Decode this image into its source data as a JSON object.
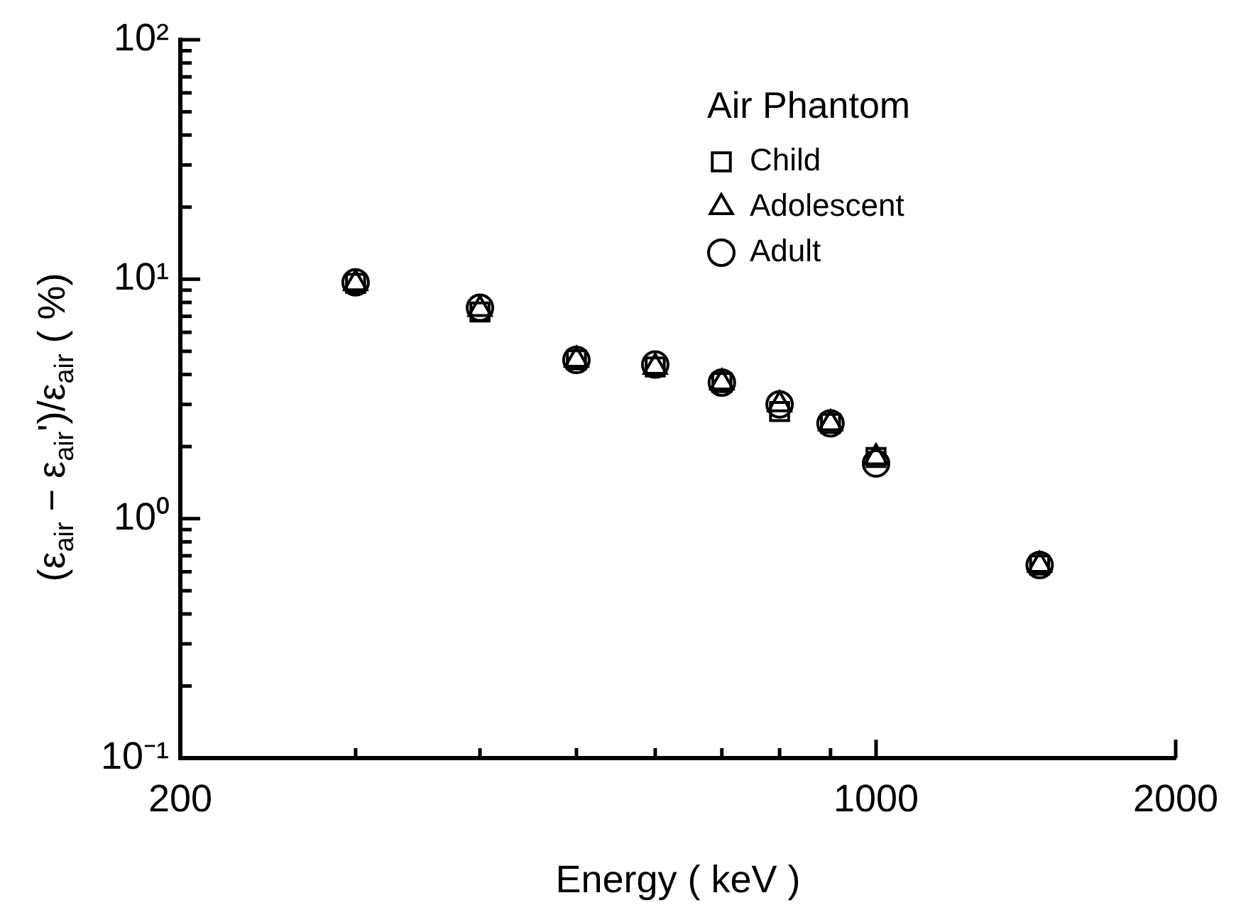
{
  "chart_data": {
    "type": "scatter",
    "xlabel": "Energy ( keV )",
    "ylabel": "(ε$_{air}$ − ε$_{air}$')/ε$_{air}$ ( %)",
    "legend_title": "Air Phantom",
    "legend": "top right",
    "log": "xy",
    "x": [
      300,
      400,
      500,
      600,
      700,
      800,
      900,
      1000,
      1460
    ],
    "xlim": [
      200,
      2000
    ],
    "xticks": [
      200,
      {
        "value": 300,
        "label": null
      },
      {
        "value": 400,
        "label": null
      },
      {
        "value": 500,
        "label": null
      },
      {
        "value": 600,
        "label": null
      },
      {
        "value": 700,
        "label": null
      },
      {
        "value": 800,
        "label": null
      },
      {
        "value": 900,
        "label": null
      },
      1000,
      2000
    ],
    "ylim": [
      0.1,
      100
    ],
    "yticks": [
      {
        "value": 0.1,
        "label": "10⁻¹"
      },
      {
        "value": 0.2,
        "label": null
      },
      {
        "value": 0.3,
        "label": null
      },
      {
        "value": 0.4,
        "label": null
      },
      {
        "value": 0.5,
        "label": null
      },
      {
        "value": 0.6,
        "label": null
      },
      {
        "value": 0.7,
        "label": null
      },
      {
        "value": 0.8,
        "label": null
      },
      {
        "value": 0.9,
        "label": null
      },
      {
        "value": 1,
        "label": "10⁰"
      },
      {
        "value": 2,
        "label": null
      },
      {
        "value": 3,
        "label": null
      },
      {
        "value": 4,
        "label": null
      },
      {
        "value": 5,
        "label": null
      },
      {
        "value": 6,
        "label": null
      },
      {
        "value": 7,
        "label": null
      },
      {
        "value": 8,
        "label": null
      },
      {
        "value": 9,
        "label": null
      },
      {
        "value": 10,
        "label": "10¹"
      },
      {
        "value": 20,
        "label": null
      },
      {
        "value": 30,
        "label": null
      },
      {
        "value": 40,
        "label": null
      },
      {
        "value": 50,
        "label": null
      },
      {
        "value": 60,
        "label": null
      },
      {
        "value": 70,
        "label": null
      },
      {
        "value": 80,
        "label": null
      },
      {
        "value": 90,
        "label": null
      },
      {
        "value": 100,
        "label": "10²"
      }
    ],
    "series": [
      {
        "name": "Child",
        "color": "#000000",
        "marker": "square",
        "values": [
          9.6,
          7.3,
          4.6,
          4.3,
          3.7,
          2.8,
          2.5,
          1.8,
          0.64
        ]
      },
      {
        "name": "Adolescent",
        "color": "#000000",
        "marker": "triangle",
        "values": [
          9.6,
          7.5,
          4.6,
          4.3,
          3.7,
          3.0,
          2.5,
          1.8,
          0.64
        ]
      },
      {
        "name": "Adult",
        "color": "#000000",
        "marker": "circle",
        "values": [
          9.7,
          7.6,
          4.6,
          4.4,
          3.7,
          3.0,
          2.5,
          1.7,
          0.64
        ]
      }
    ]
  }
}
